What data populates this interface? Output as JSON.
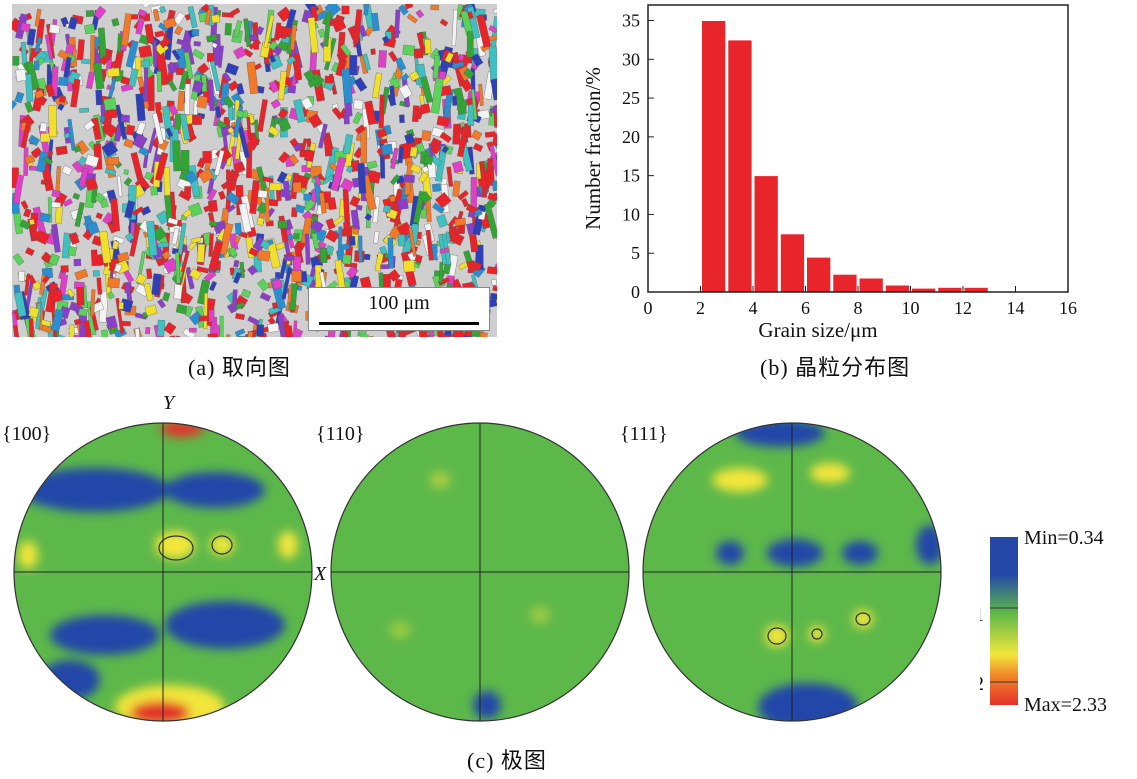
{
  "panel_a": {
    "scale_label": "100 μm",
    "caption": "(a) 取向图",
    "grain_colors": [
      "#e8232a",
      "#e8232a",
      "#e8232a",
      "#2f3fb8",
      "#33a535",
      "#2a8fd0",
      "#f0e02b",
      "#e040c8",
      "#f07a2a",
      "#5bd35b",
      "#8b3fc8",
      "#e8232a",
      "#40c0c0",
      "#f3f3f3"
    ]
  },
  "panel_b": {
    "caption": "(b) 晶粒分布图"
  },
  "panel_c": {
    "caption": "(c) 极图",
    "figures": [
      {
        "label": "{100}"
      },
      {
        "label": "{110}"
      },
      {
        "label": "{111}"
      }
    ],
    "axis_y": "Y",
    "axis_x": "X",
    "colors": {
      "low": "#2447a8",
      "mid": "#5db84a",
      "high_yellow": "#f2e63a",
      "high_red": "#e3322a"
    }
  },
  "legend": {
    "min_label": "Min=0.34",
    "max_label": "Max=2.33",
    "tick_1": "1",
    "tick_2": "2"
  },
  "chart_data": {
    "type": "bar",
    "xlabel": "Grain size/μm",
    "ylabel": "Number fraction/%",
    "xlim": [
      0,
      16
    ],
    "ylim": [
      0,
      37
    ],
    "xticks": [
      0,
      2,
      4,
      6,
      8,
      10,
      12,
      14,
      16
    ],
    "yticks": [
      0,
      5,
      10,
      15,
      20,
      25,
      30,
      35
    ],
    "bar_color": "#e8252a",
    "bars": [
      {
        "x_start": 2,
        "x_end": 3,
        "value": 35
      },
      {
        "x_start": 3,
        "x_end": 4,
        "value": 32.5
      },
      {
        "x_start": 4,
        "x_end": 5,
        "value": 15
      },
      {
        "x_start": 5,
        "x_end": 6,
        "value": 7.5
      },
      {
        "x_start": 6,
        "x_end": 7,
        "value": 4.5
      },
      {
        "x_start": 7,
        "x_end": 8,
        "value": 2.3
      },
      {
        "x_start": 8,
        "x_end": 9,
        "value": 1.8
      },
      {
        "x_start": 9,
        "x_end": 10,
        "value": 0.9
      },
      {
        "x_start": 10,
        "x_end": 11,
        "value": 0.5
      },
      {
        "x_start": 11,
        "x_end": 12,
        "value": 0.6
      },
      {
        "x_start": 12,
        "x_end": 13,
        "value": 0.6
      }
    ]
  }
}
